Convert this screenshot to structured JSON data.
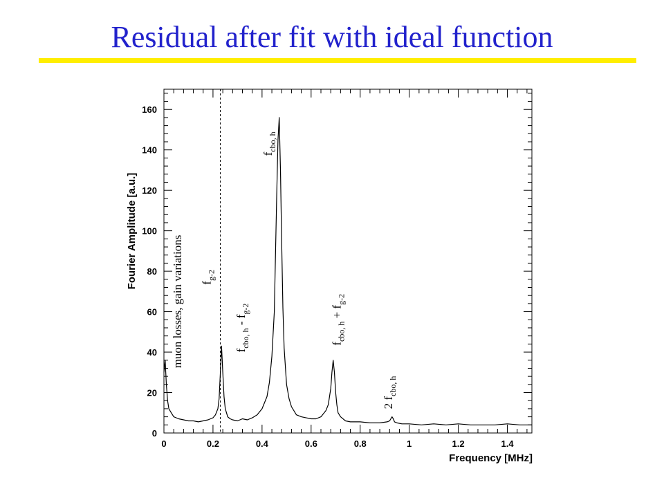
{
  "slide": {
    "title": "Residual after fit with ideal function",
    "title_color": "#2222cc",
    "rule_color": "#ffee00"
  },
  "chart_data": {
    "type": "line",
    "title": "",
    "xlabel": "Frequency [MHz]",
    "ylabel": "Fourier Amplitude [a.u.]",
    "xlim": [
      0,
      1.5
    ],
    "ylim": [
      0,
      170
    ],
    "x_ticks": [
      "0",
      "0.2",
      "0.4",
      "0.6",
      "0.8",
      "1",
      "1.2",
      "1.4"
    ],
    "y_ticks": [
      "0",
      "20",
      "40",
      "60",
      "80",
      "100",
      "120",
      "140",
      "160"
    ],
    "grid": false,
    "line_color": "#000000",
    "reference_line": {
      "x": 0.23,
      "style": "dashed"
    },
    "series": [
      {
        "x": [
          0,
          0.005,
          0.01,
          0.015,
          0.02,
          0.03,
          0.04,
          0.06,
          0.08,
          0.1,
          0.12,
          0.14,
          0.16,
          0.18,
          0.19,
          0.2,
          0.21,
          0.22,
          0.225,
          0.23,
          0.235,
          0.24,
          0.245,
          0.25,
          0.26,
          0.27,
          0.28,
          0.3,
          0.32,
          0.34,
          0.36,
          0.38,
          0.4,
          0.42,
          0.43,
          0.44,
          0.45,
          0.455,
          0.46,
          0.465,
          0.47,
          0.475,
          0.48,
          0.485,
          0.49,
          0.5,
          0.51,
          0.52,
          0.54,
          0.56,
          0.58,
          0.6,
          0.62,
          0.64,
          0.66,
          0.67,
          0.68,
          0.685,
          0.69,
          0.695,
          0.7,
          0.705,
          0.71,
          0.72,
          0.74,
          0.76,
          0.8,
          0.84,
          0.88,
          0.91,
          0.92,
          0.93,
          0.935,
          0.94,
          0.95,
          0.97,
          1.0,
          1.05,
          1.1,
          1.15,
          1.2,
          1.25,
          1.3,
          1.35,
          1.4,
          1.45,
          1.5
        ],
        "y": [
          30,
          36,
          24,
          16,
          12,
          10,
          8,
          7,
          6.5,
          6,
          6,
          5.5,
          6,
          6.5,
          7,
          7.5,
          9,
          12,
          17,
          30,
          43,
          30,
          18,
          12,
          8,
          7,
          6.5,
          6,
          7,
          6.5,
          7.5,
          9,
          12,
          18,
          25,
          38,
          60,
          90,
          118,
          145,
          156,
          130,
          95,
          62,
          42,
          24,
          17,
          13,
          9,
          8,
          7.5,
          7,
          7,
          8,
          11,
          14,
          22,
          30,
          36,
          30,
          20,
          14,
          10,
          8,
          6,
          5.5,
          5.5,
          5,
          5,
          5.5,
          6,
          8,
          7,
          5.5,
          5,
          4.5,
          4.5,
          4,
          4.5,
          4,
          4.5,
          4,
          4,
          4,
          4.5,
          4,
          4
        ]
      }
    ],
    "annotations": [
      {
        "text": "muon losses, gain variations",
        "x": 0.07,
        "y": 65
      },
      {
        "main": "f",
        "sub": "g-2",
        "x": 0.19,
        "y": 77
      },
      {
        "main": "f",
        "sub": "cbo, h",
        "mid": " - f",
        "sub2": "g-2",
        "x": 0.33,
        "y": 52
      },
      {
        "main": "f",
        "sub": "cbo, h",
        "x": 0.44,
        "y": 143
      },
      {
        "main": "f",
        "sub": "cbo, h",
        "mid": " + f",
        "sub2": "g-2",
        "x": 0.72,
        "y": 56
      },
      {
        "pre": "2 ",
        "main": "f",
        "sub": "cbo, h",
        "x": 0.93,
        "y": 20
      }
    ]
  }
}
